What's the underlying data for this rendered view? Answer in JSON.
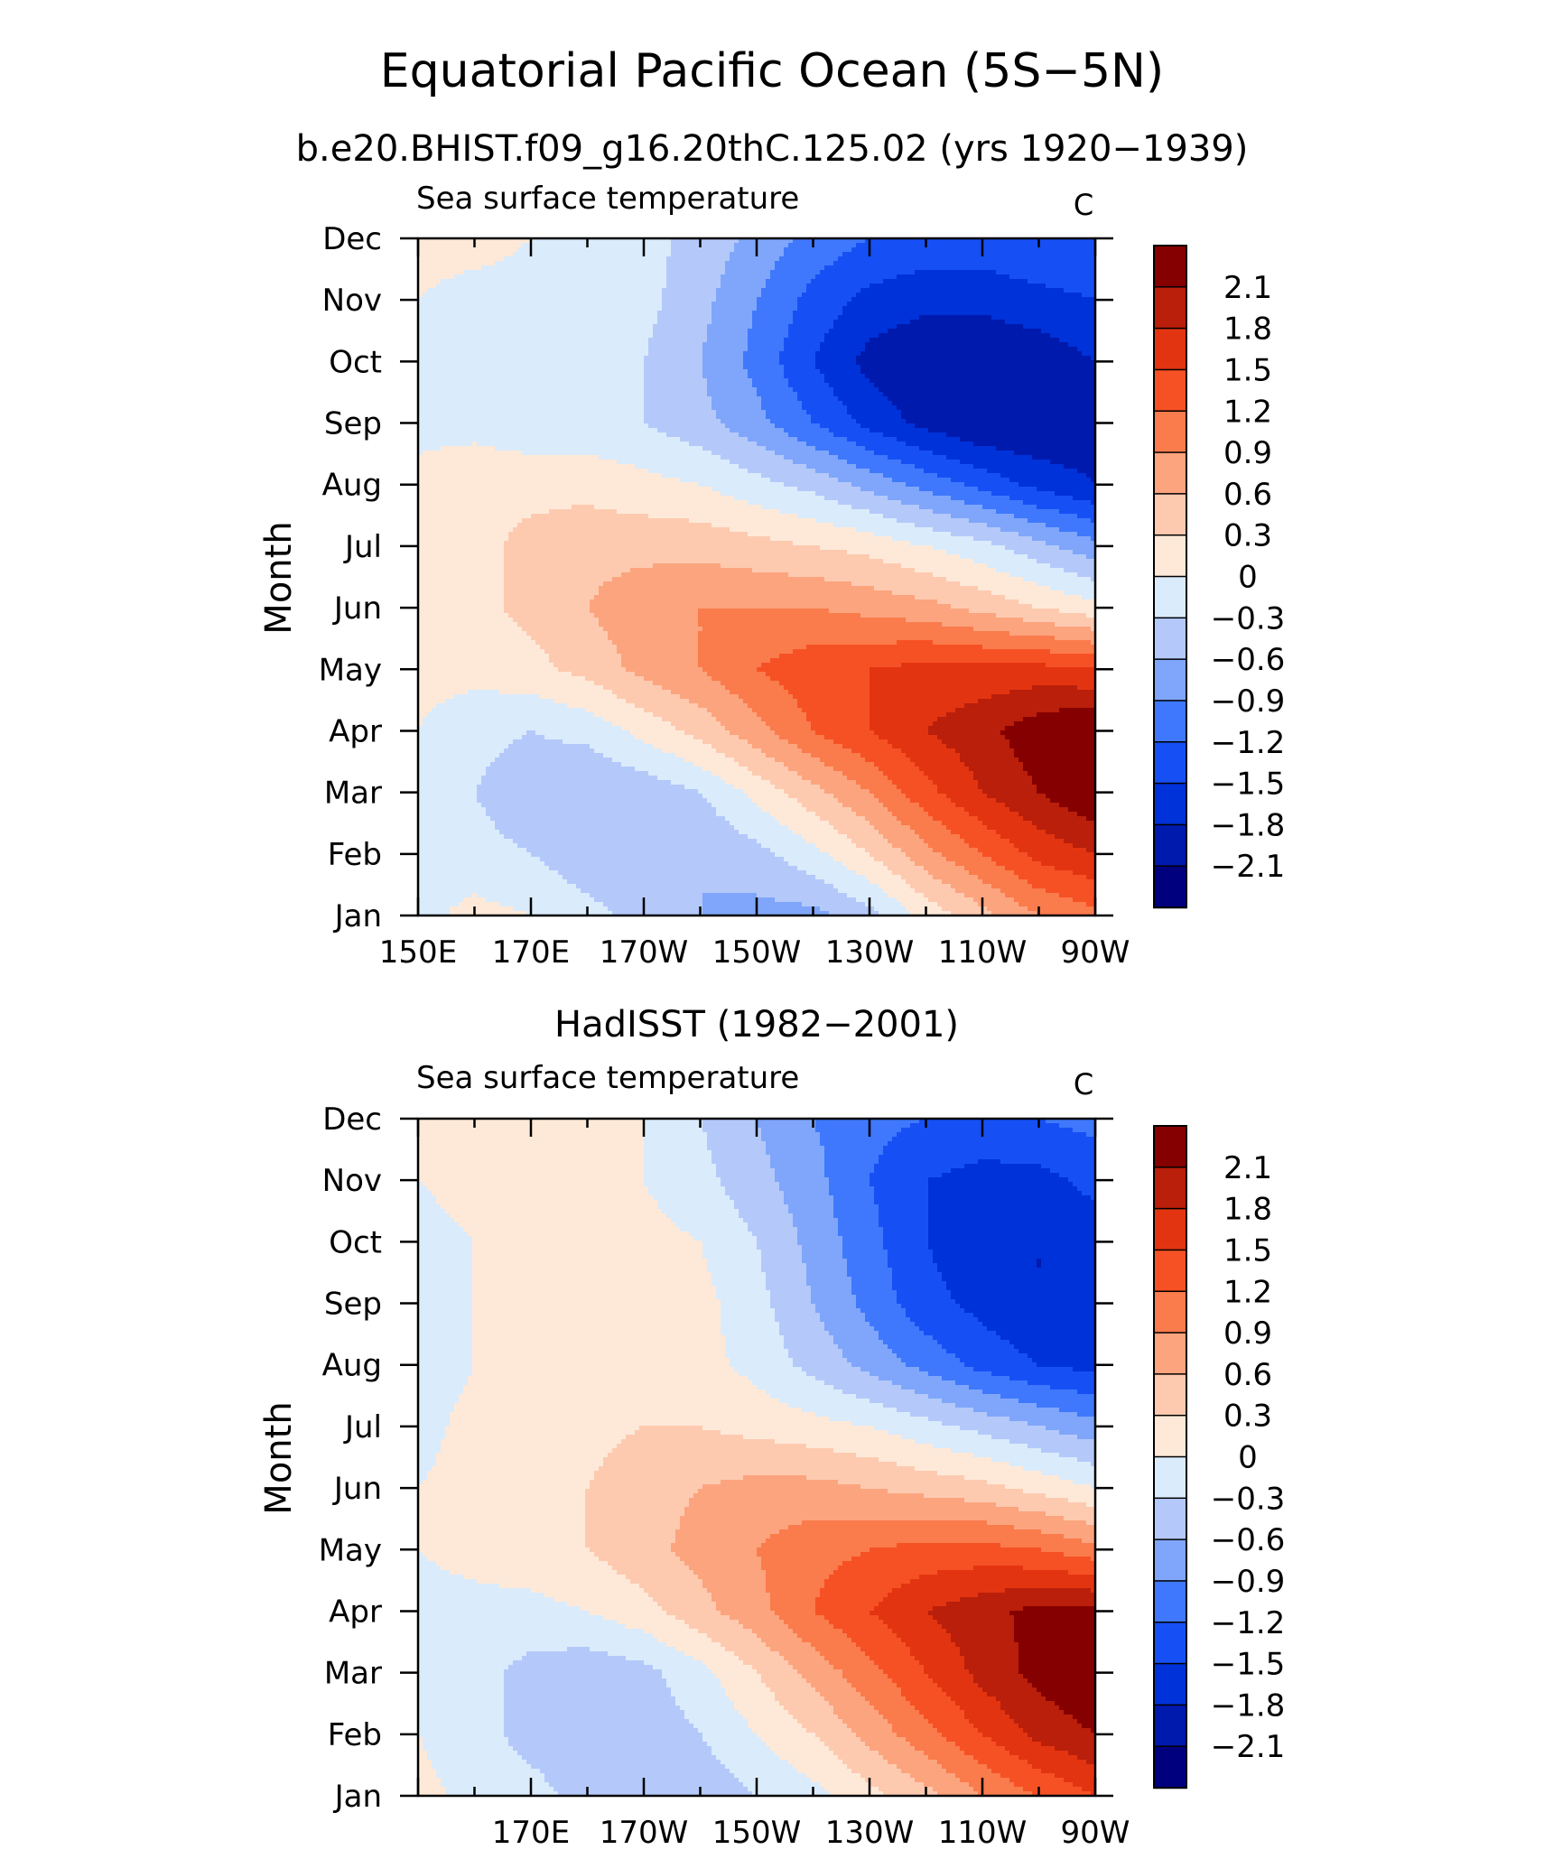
{
  "figure": {
    "title": "Equatorial Pacific Ocean (5S−5N)"
  },
  "chart_data": [
    {
      "type": "heatmap",
      "title": "b.e20.BHIST.f09_g16.20thC.125.02 (yrs 1920−1939)",
      "left_label": "Sea surface temperature",
      "units": "C",
      "ylabel": "Month",
      "xlabel": "",
      "x_ticklabels": [
        "150E",
        "170E",
        "170W",
        "150W",
        "130W",
        "110W",
        "90W"
      ],
      "y_ticklabels": [
        "Jan",
        "Feb",
        "Mar",
        "Apr",
        "May",
        "Jun",
        "Jul",
        "Aug",
        "Sep",
        "Oct",
        "Nov",
        "Dec"
      ],
      "xlim_deg_east": [
        150,
        270
      ],
      "lon": [
        150,
        160,
        170,
        180,
        190,
        200,
        210,
        220,
        230,
        240,
        250,
        260,
        270
      ],
      "values": [
        [
          -0.1,
          0.1,
          0.0,
          -0.2,
          -0.4,
          -0.6,
          -0.7,
          -0.7,
          -0.4,
          0.1,
          0.5,
          0.9,
          1.1
        ],
        [
          -0.1,
          -0.2,
          -0.3,
          -0.5,
          -0.6,
          -0.6,
          -0.4,
          -0.1,
          0.3,
          0.8,
          1.2,
          1.6,
          1.8
        ],
        [
          -0.1,
          -0.3,
          -0.5,
          -0.6,
          -0.5,
          -0.3,
          0.1,
          0.5,
          0.9,
          1.4,
          1.8,
          2.1,
          2.4
        ],
        [
          0.0,
          -0.2,
          -0.3,
          -0.2,
          0.1,
          0.4,
          0.8,
          1.2,
          1.5,
          1.8,
          2.0,
          2.3,
          2.5
        ],
        [
          0.1,
          0.1,
          0.2,
          0.4,
          0.7,
          0.9,
          1.2,
          1.4,
          1.5,
          1.6,
          1.6,
          1.6,
          1.5
        ],
        [
          0.1,
          0.2,
          0.4,
          0.6,
          0.8,
          0.9,
          0.9,
          0.9,
          0.8,
          0.7,
          0.5,
          0.3,
          0.1
        ],
        [
          0.1,
          0.2,
          0.4,
          0.5,
          0.5,
          0.5,
          0.4,
          0.3,
          0.2,
          0.0,
          -0.2,
          -0.5,
          -0.8
        ],
        [
          0.1,
          0.2,
          0.2,
          0.2,
          0.1,
          0.0,
          -0.2,
          -0.4,
          -0.7,
          -1.0,
          -1.3,
          -1.6,
          -1.8
        ],
        [
          -0.1,
          -0.1,
          -0.2,
          -0.2,
          -0.3,
          -0.5,
          -0.8,
          -1.2,
          -1.6,
          -1.9,
          -2.1,
          -2.1,
          -2.0
        ],
        [
          -0.1,
          -0.1,
          -0.1,
          -0.1,
          -0.3,
          -0.6,
          -1.0,
          -1.5,
          -1.9,
          -2.1,
          -2.1,
          -2.0,
          -1.8
        ],
        [
          0.0,
          -0.1,
          -0.1,
          -0.1,
          -0.2,
          -0.5,
          -0.9,
          -1.3,
          -1.6,
          -1.7,
          -1.7,
          -1.6,
          -1.5
        ],
        [
          0.1,
          0.1,
          0.0,
          -0.1,
          -0.2,
          -0.4,
          -0.7,
          -1.0,
          -1.2,
          -1.3,
          -1.3,
          -1.2,
          -1.2
        ]
      ]
    },
    {
      "type": "heatmap",
      "title": "HadISST (1982−2001)",
      "left_label": "Sea surface temperature",
      "units": "C",
      "ylabel": "Month",
      "xlabel": "",
      "x_ticklabels": [
        "",
        "170E",
        "170W",
        "150W",
        "130W",
        "110W",
        "90W"
      ],
      "y_ticklabels": [
        "Jan",
        "Feb",
        "Mar",
        "Apr",
        "May",
        "Jun",
        "Jul",
        "Aug",
        "Sep",
        "Oct",
        "Nov",
        "Dec"
      ],
      "xlim_deg_east": [
        150,
        270
      ],
      "lon": [
        150,
        160,
        170,
        180,
        190,
        200,
        210,
        220,
        230,
        240,
        250,
        260,
        270
      ],
      "values": [
        [
          0.1,
          -0.1,
          -0.2,
          -0.4,
          -0.5,
          -0.5,
          -0.3,
          -0.1,
          0.2,
          0.5,
          0.9,
          1.2,
          1.5
        ],
        [
          0.0,
          -0.2,
          -0.4,
          -0.5,
          -0.5,
          -0.3,
          0.0,
          0.3,
          0.7,
          1.1,
          1.5,
          1.9,
          2.1
        ],
        [
          -0.1,
          -0.2,
          -0.4,
          -0.5,
          -0.4,
          -0.1,
          0.3,
          0.7,
          1.1,
          1.5,
          1.9,
          2.2,
          2.4
        ],
        [
          -0.1,
          -0.1,
          -0.1,
          0.0,
          0.2,
          0.5,
          0.8,
          1.2,
          1.5,
          1.8,
          2.0,
          2.2,
          2.2
        ],
        [
          0.0,
          0.1,
          0.2,
          0.3,
          0.5,
          0.7,
          0.9,
          1.1,
          1.2,
          1.3,
          1.3,
          1.2,
          1.0
        ],
        [
          0.0,
          0.1,
          0.2,
          0.3,
          0.5,
          0.6,
          0.7,
          0.7,
          0.6,
          0.5,
          0.4,
          0.2,
          0.0
        ],
        [
          -0.1,
          0.1,
          0.2,
          0.2,
          0.3,
          0.3,
          0.2,
          0.1,
          0.0,
          -0.2,
          -0.4,
          -0.6,
          -0.8
        ],
        [
          -0.2,
          0.0,
          0.2,
          0.2,
          0.2,
          0.1,
          -0.1,
          -0.4,
          -0.7,
          -1.0,
          -1.3,
          -1.5,
          -1.6
        ],
        [
          -0.2,
          0.0,
          0.2,
          0.3,
          0.2,
          0.1,
          -0.2,
          -0.6,
          -1.0,
          -1.4,
          -1.6,
          -1.8,
          -1.8
        ],
        [
          -0.1,
          0.0,
          0.1,
          0.2,
          0.1,
          0.0,
          -0.3,
          -0.7,
          -1.1,
          -1.5,
          -1.7,
          -1.8,
          -1.7
        ],
        [
          0.0,
          0.1,
          0.1,
          0.1,
          0.0,
          -0.2,
          -0.5,
          -0.8,
          -1.2,
          -1.5,
          -1.6,
          -1.6,
          -1.4
        ],
        [
          0.1,
          0.1,
          0.1,
          0.1,
          0.0,
          -0.3,
          -0.6,
          -0.9,
          -1.1,
          -1.2,
          -1.3,
          -1.2,
          -1.1
        ]
      ]
    }
  ],
  "colorbar": {
    "levels": [
      -2.4,
      -2.1,
      -1.8,
      -1.5,
      -1.2,
      -0.9,
      -0.6,
      -0.3,
      0,
      0.3,
      0.6,
      0.9,
      1.2,
      1.5,
      1.8,
      2.1,
      2.4
    ],
    "labels": [
      "2.1",
      "1.8",
      "1.5",
      "1.2",
      "0.9",
      "0.6",
      "0.3",
      "0",
      "−0.3",
      "−0.6",
      "−0.9",
      "−1.2",
      "−1.5",
      "−1.8",
      "−2.1"
    ],
    "colors": [
      "#00007f",
      "#001aae",
      "#0032d9",
      "#1650f5",
      "#3f78fc",
      "#7fa6fa",
      "#b4c9fa",
      "#daebfb",
      "#fee9d8",
      "#fdcab0",
      "#fca47e",
      "#fa7b4c",
      "#f65125",
      "#e33411",
      "#b91f0a",
      "#850000"
    ]
  }
}
